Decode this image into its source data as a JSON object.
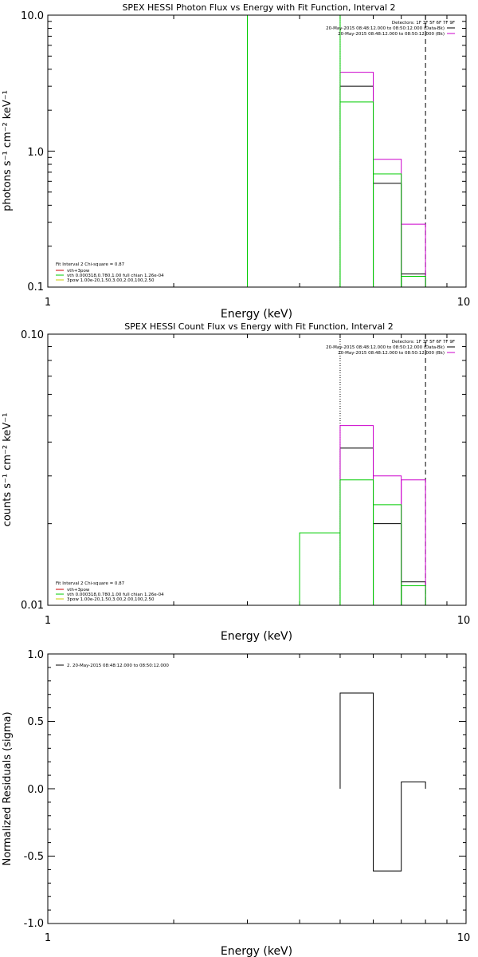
{
  "chart_data": [
    {
      "type": "line",
      "title": "SPEX HESSI Photon Flux vs Energy with Fit Function, Interval 2",
      "xlabel": "Energy (keV)",
      "ylabel": "photons s⁻¹ cm⁻² keV⁻¹",
      "xscale": "log",
      "yscale": "log",
      "xlim": [
        1,
        10
      ],
      "ylim": [
        0.1,
        10
      ],
      "xticklabels": [
        "1",
        "10"
      ],
      "yticklabels": [
        "10.0",
        "1.0",
        "0.1"
      ],
      "detectors_text": "Detectors: 1F 3F 5F 6F 7F 9F",
      "legend_right": [
        {
          "text": "20-May-2015 08:48:12.000 to 08:50:12.000 (Data-Bk)",
          "color": "#000000"
        },
        {
          "text": "20-May-2015 08:48:12.000 to 08:50:12.000 (Bk)",
          "color": "#cc00cc"
        }
      ],
      "fit_info": "Fit Interval 2   Chi-square = 0.87",
      "legend_left": [
        {
          "text": "vth+3pow",
          "color": "#cc0000"
        },
        {
          "text": "vth 0.000318,0.780,1.00  full chian 1.26e-04",
          "color": "#00cc00"
        },
        {
          "text": "3pow 1.00e-20,1.50,3.00,2.00,100,2.50",
          "color": "#cccc00"
        }
      ],
      "vlines": [
        {
          "x": 5.0,
          "style": "dotted"
        },
        {
          "x": 8.0,
          "style": "dashed"
        }
      ],
      "series": [
        {
          "color": "#000000",
          "bins": [
            [
              5,
              6,
              3.0
            ],
            [
              6,
              7,
              0.58
            ],
            [
              7,
              8,
              0.125
            ]
          ]
        },
        {
          "color": "#cc00cc",
          "bins": [
            [
              5,
              6,
              3.8
            ],
            [
              6,
              7,
              0.87
            ],
            [
              7,
              8,
              0.29
            ]
          ]
        },
        {
          "color": "#00cc00",
          "bins": [
            [
              3,
              5,
              10.0
            ],
            [
              5,
              6,
              2.3
            ],
            [
              6,
              7,
              0.68
            ],
            [
              7,
              8,
              0.12
            ]
          ]
        }
      ]
    },
    {
      "type": "line",
      "title": "SPEX HESSI Count Flux vs Energy with Fit Function, Interval 2",
      "xlabel": "Energy (keV)",
      "ylabel": "counts s⁻¹ cm⁻² keV⁻¹",
      "xscale": "log",
      "yscale": "log",
      "xlim": [
        1,
        10
      ],
      "ylim": [
        0.01,
        0.1
      ],
      "xticklabels": [
        "1",
        "10"
      ],
      "yticklabels": [
        "0.10",
        "0.01"
      ],
      "detectors_text": "Detectors: 1F 3F 5F 6F 7F 9F",
      "legend_right": [
        {
          "text": "20-May-2015 08:48:12.000 to 08:50:12.000 (Data-Bk)",
          "color": "#000000"
        },
        {
          "text": "20-May-2015 08:48:12.000 to 08:50:12.000 (Bk)",
          "color": "#cc00cc"
        }
      ],
      "fit_info": "Fit Interval 2   Chi-square = 0.87",
      "legend_left": [
        {
          "text": "vth+3pow",
          "color": "#cc0000"
        },
        {
          "text": "vth 0.000318,0.780,1.00  full chian 1.26e-04",
          "color": "#00cc00"
        },
        {
          "text": "3pow 1.00e-20,1.50,3.00,2.00,100,2.50",
          "color": "#cccc00"
        }
      ],
      "vlines": [
        {
          "x": 5.0,
          "style": "dotted"
        },
        {
          "x": 8.0,
          "style": "dashed"
        }
      ],
      "series": [
        {
          "color": "#000000",
          "bins": [
            [
              5,
              6,
              0.038
            ],
            [
              6,
              7,
              0.02
            ],
            [
              7,
              8,
              0.0122
            ]
          ]
        },
        {
          "color": "#cc00cc",
          "bins": [
            [
              5,
              6,
              0.046
            ],
            [
              6,
              7,
              0.03
            ],
            [
              7,
              8,
              0.029
            ]
          ]
        },
        {
          "color": "#00cc00",
          "bins": [
            [
              4,
              5,
              0.0185
            ],
            [
              5,
              6,
              0.029
            ],
            [
              6,
              7,
              0.0235
            ],
            [
              7,
              8,
              0.0118
            ]
          ]
        }
      ]
    },
    {
      "type": "line",
      "title": "",
      "xlabel": "Energy (keV)",
      "ylabel": "Normalized Residuals (sigma)",
      "xscale": "log",
      "yscale": "linear",
      "xlim": [
        1,
        10
      ],
      "ylim": [
        -1.0,
        1.0
      ],
      "xticklabels": [
        "1",
        "10"
      ],
      "yticks": [
        1.0,
        0.5,
        0.0,
        -0.5,
        -1.0
      ],
      "yticklabels": [
        "1.0",
        "0.5",
        "0.0",
        "-0.5",
        "-1.0"
      ],
      "legend_line": "2. 20-May-2015 08:48:12.000 to 08:50:12.000",
      "series": [
        {
          "color": "#000000",
          "bins": [
            [
              5,
              6,
              0.71
            ],
            [
              6,
              7,
              -0.61
            ],
            [
              7,
              8,
              0.05
            ]
          ]
        }
      ]
    }
  ]
}
